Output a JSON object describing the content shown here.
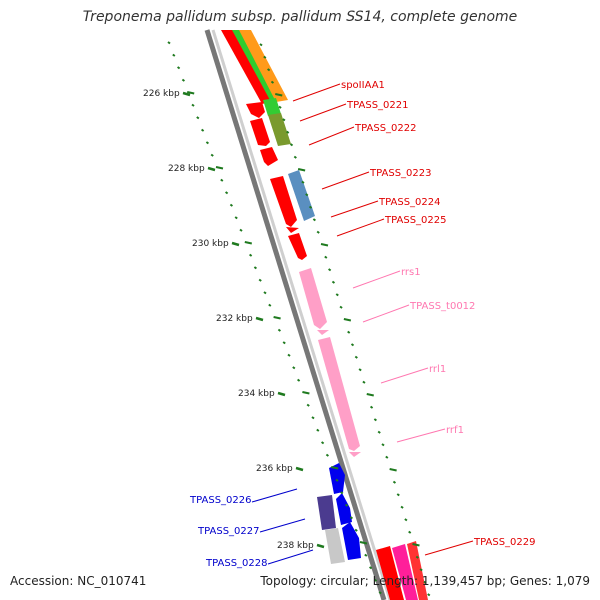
{
  "title": "Treponema pallidum subsp. pallidum SS14, complete genome",
  "footer": {
    "accession": "Accession: NC_010741",
    "topology": "Topology: circular; Length: 1,139,457 bp; Genes: 1,079"
  },
  "colors": {
    "backbone": "#888888",
    "tick": "#1f7a1f",
    "cds": "#ff0000",
    "rrna": "#ff9fc7",
    "label_red": "#e00000",
    "label_blue": "#0000cc",
    "label_pink": "#ff77b0"
  },
  "tick_labels": [
    "226 kbp",
    "228 kbp",
    "230 kbp",
    "232 kbp",
    "234 kbp",
    "236 kbp",
    "238 kbp"
  ],
  "genes": [
    {
      "name": "spoIIAA1",
      "label_color": "#e00000"
    },
    {
      "name": "TPASS_0221",
      "label_color": "#e00000"
    },
    {
      "name": "TPASS_0222",
      "label_color": "#e00000"
    },
    {
      "name": "TPASS_0223",
      "label_color": "#e00000"
    },
    {
      "name": "TPASS_0224",
      "label_color": "#e00000"
    },
    {
      "name": "TPASS_0225",
      "label_color": "#e00000"
    },
    {
      "name": "rrs1",
      "label_color": "#ff77b0"
    },
    {
      "name": "TPASS_t0012",
      "label_color": "#ff77b0"
    },
    {
      "name": "rrl1",
      "label_color": "#ff77b0"
    },
    {
      "name": "rrf1",
      "label_color": "#ff77b0"
    },
    {
      "name": "TPASS_0226",
      "label_color": "#0000cc"
    },
    {
      "name": "TPASS_0227",
      "label_color": "#0000cc"
    },
    {
      "name": "TPASS_0228",
      "label_color": "#0000cc"
    },
    {
      "name": "TPASS_0229",
      "label_color": "#e00000"
    }
  ]
}
